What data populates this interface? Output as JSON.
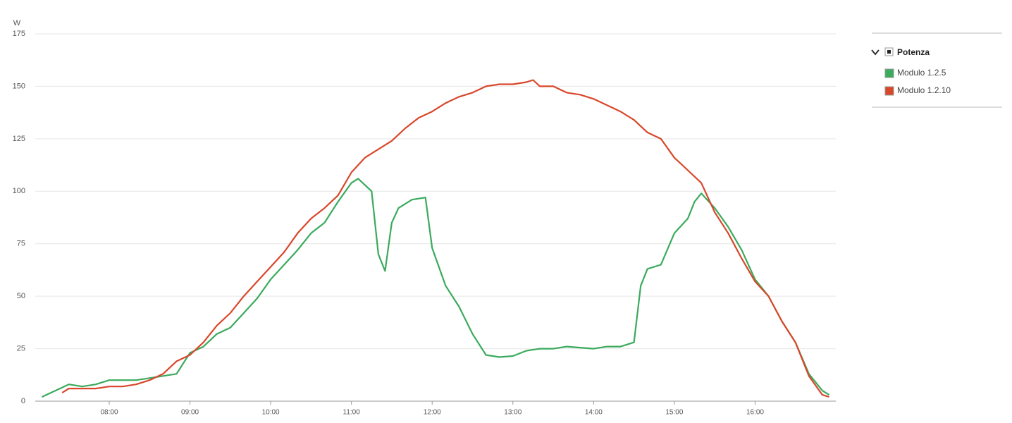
{
  "chart_data": {
    "type": "line",
    "y_unit": "W",
    "legend_group": "Potenza",
    "legend": "right",
    "grid": true,
    "xlim": [
      "07:05",
      "17:00"
    ],
    "xticks": [
      "08:00",
      "09:00",
      "10:00",
      "11:00",
      "12:00",
      "13:00",
      "14:00",
      "15:00",
      "16:00"
    ],
    "ylim": [
      0,
      175
    ],
    "yticks": [
      0,
      25,
      50,
      75,
      100,
      125,
      150,
      175
    ],
    "series": [
      {
        "name": "Modulo 1.2.5",
        "color": "#3aaa5c",
        "x": [
          "07:10",
          "07:20",
          "07:30",
          "07:40",
          "07:50",
          "08:00",
          "08:10",
          "08:20",
          "08:30",
          "08:40",
          "08:50",
          "09:00",
          "09:10",
          "09:20",
          "09:30",
          "09:40",
          "09:50",
          "10:00",
          "10:10",
          "10:20",
          "10:30",
          "10:40",
          "10:50",
          "11:00",
          "11:05",
          "11:15",
          "11:20",
          "11:25",
          "11:30",
          "11:35",
          "11:45",
          "11:55",
          "12:00",
          "12:10",
          "12:20",
          "12:30",
          "12:40",
          "12:50",
          "13:00",
          "13:10",
          "13:20",
          "13:30",
          "13:40",
          "13:50",
          "14:00",
          "14:10",
          "14:20",
          "14:30",
          "14:35",
          "14:40",
          "14:50",
          "15:00",
          "15:10",
          "15:15",
          "15:20",
          "15:30",
          "15:40",
          "15:50",
          "16:00",
          "16:10",
          "16:20",
          "16:30",
          "16:40",
          "16:50",
          "16:55"
        ],
        "values": [
          2,
          5,
          8,
          7,
          8,
          10,
          10,
          10,
          11,
          12,
          13,
          23,
          26,
          32,
          35,
          42,
          49,
          58,
          65,
          72,
          80,
          85,
          95,
          104,
          106,
          100,
          70,
          62,
          85,
          92,
          96,
          97,
          73,
          55,
          45,
          32,
          22,
          21,
          21.5,
          24,
          25,
          25,
          26,
          25.5,
          25,
          26,
          26,
          28,
          55,
          63,
          65,
          80,
          87,
          95,
          99,
          92,
          83,
          72,
          58,
          50,
          38,
          28,
          13,
          5,
          3
        ]
      },
      {
        "name": "Modulo 1.2.10",
        "color": "#d9472b",
        "x": [
          "07:25",
          "07:30",
          "07:40",
          "07:50",
          "08:00",
          "08:10",
          "08:20",
          "08:30",
          "08:40",
          "08:50",
          "09:00",
          "09:10",
          "09:20",
          "09:30",
          "09:40",
          "09:50",
          "10:00",
          "10:10",
          "10:20",
          "10:30",
          "10:40",
          "10:50",
          "11:00",
          "11:10",
          "11:20",
          "11:30",
          "11:40",
          "11:50",
          "12:00",
          "12:10",
          "12:20",
          "12:30",
          "12:40",
          "12:50",
          "13:00",
          "13:10",
          "13:15",
          "13:20",
          "13:30",
          "13:40",
          "13:50",
          "14:00",
          "14:10",
          "14:20",
          "14:30",
          "14:40",
          "14:50",
          "15:00",
          "15:10",
          "15:20",
          "15:30",
          "15:40",
          "15:50",
          "16:00",
          "16:10",
          "16:20",
          "16:30",
          "16:40",
          "16:50",
          "16:55"
        ],
        "values": [
          4,
          6,
          6,
          6,
          7,
          7,
          8,
          10,
          13,
          19,
          22,
          28,
          36,
          42,
          50,
          57,
          64,
          71,
          80,
          87,
          92,
          98,
          109,
          116,
          120,
          124,
          130,
          135,
          138,
          142,
          145,
          147,
          150,
          151,
          151,
          152,
          153,
          150,
          150,
          147,
          146,
          144,
          141,
          138,
          134,
          128,
          125,
          116,
          110,
          104,
          90,
          80,
          68,
          57,
          50,
          38,
          28,
          12,
          3,
          2
        ]
      }
    ]
  }
}
